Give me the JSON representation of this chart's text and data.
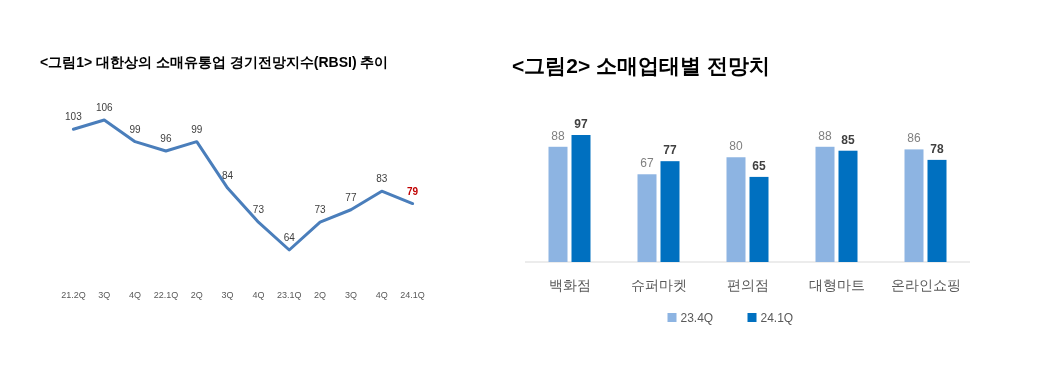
{
  "chart_data": [
    {
      "type": "line",
      "title": "<그림1> 대한상의 소매유통업 경기전망지수(RBSI) 추이",
      "categories": [
        "21.2Q",
        "3Q",
        "4Q",
        "22.1Q",
        "2Q",
        "3Q",
        "4Q",
        "23.1Q",
        "2Q",
        "3Q",
        "4Q",
        "24.1Q"
      ],
      "series": [
        {
          "color": "#4a7ebb",
          "values": [
            103,
            106,
            99,
            96,
            99,
            84,
            73,
            64,
            73,
            77,
            83,
            79
          ]
        }
      ],
      "data_labels": true,
      "marker": "none"
    },
    {
      "type": "bar",
      "title": "<그림2> 소매업태별 전망치",
      "categories": [
        "백화점",
        "슈퍼마켓",
        "편의점",
        "대형마트",
        "온라인쇼핑"
      ],
      "series": [
        {
          "name": "23.4Q",
          "color": "#8db4e2",
          "values": [
            88,
            67,
            80,
            88,
            86
          ]
        },
        {
          "name": "24.1Q",
          "color": "#0070c0",
          "values": [
            97,
            77,
            65,
            85,
            78
          ]
        }
      ],
      "data_labels": true,
      "legend": "bottom"
    }
  ]
}
